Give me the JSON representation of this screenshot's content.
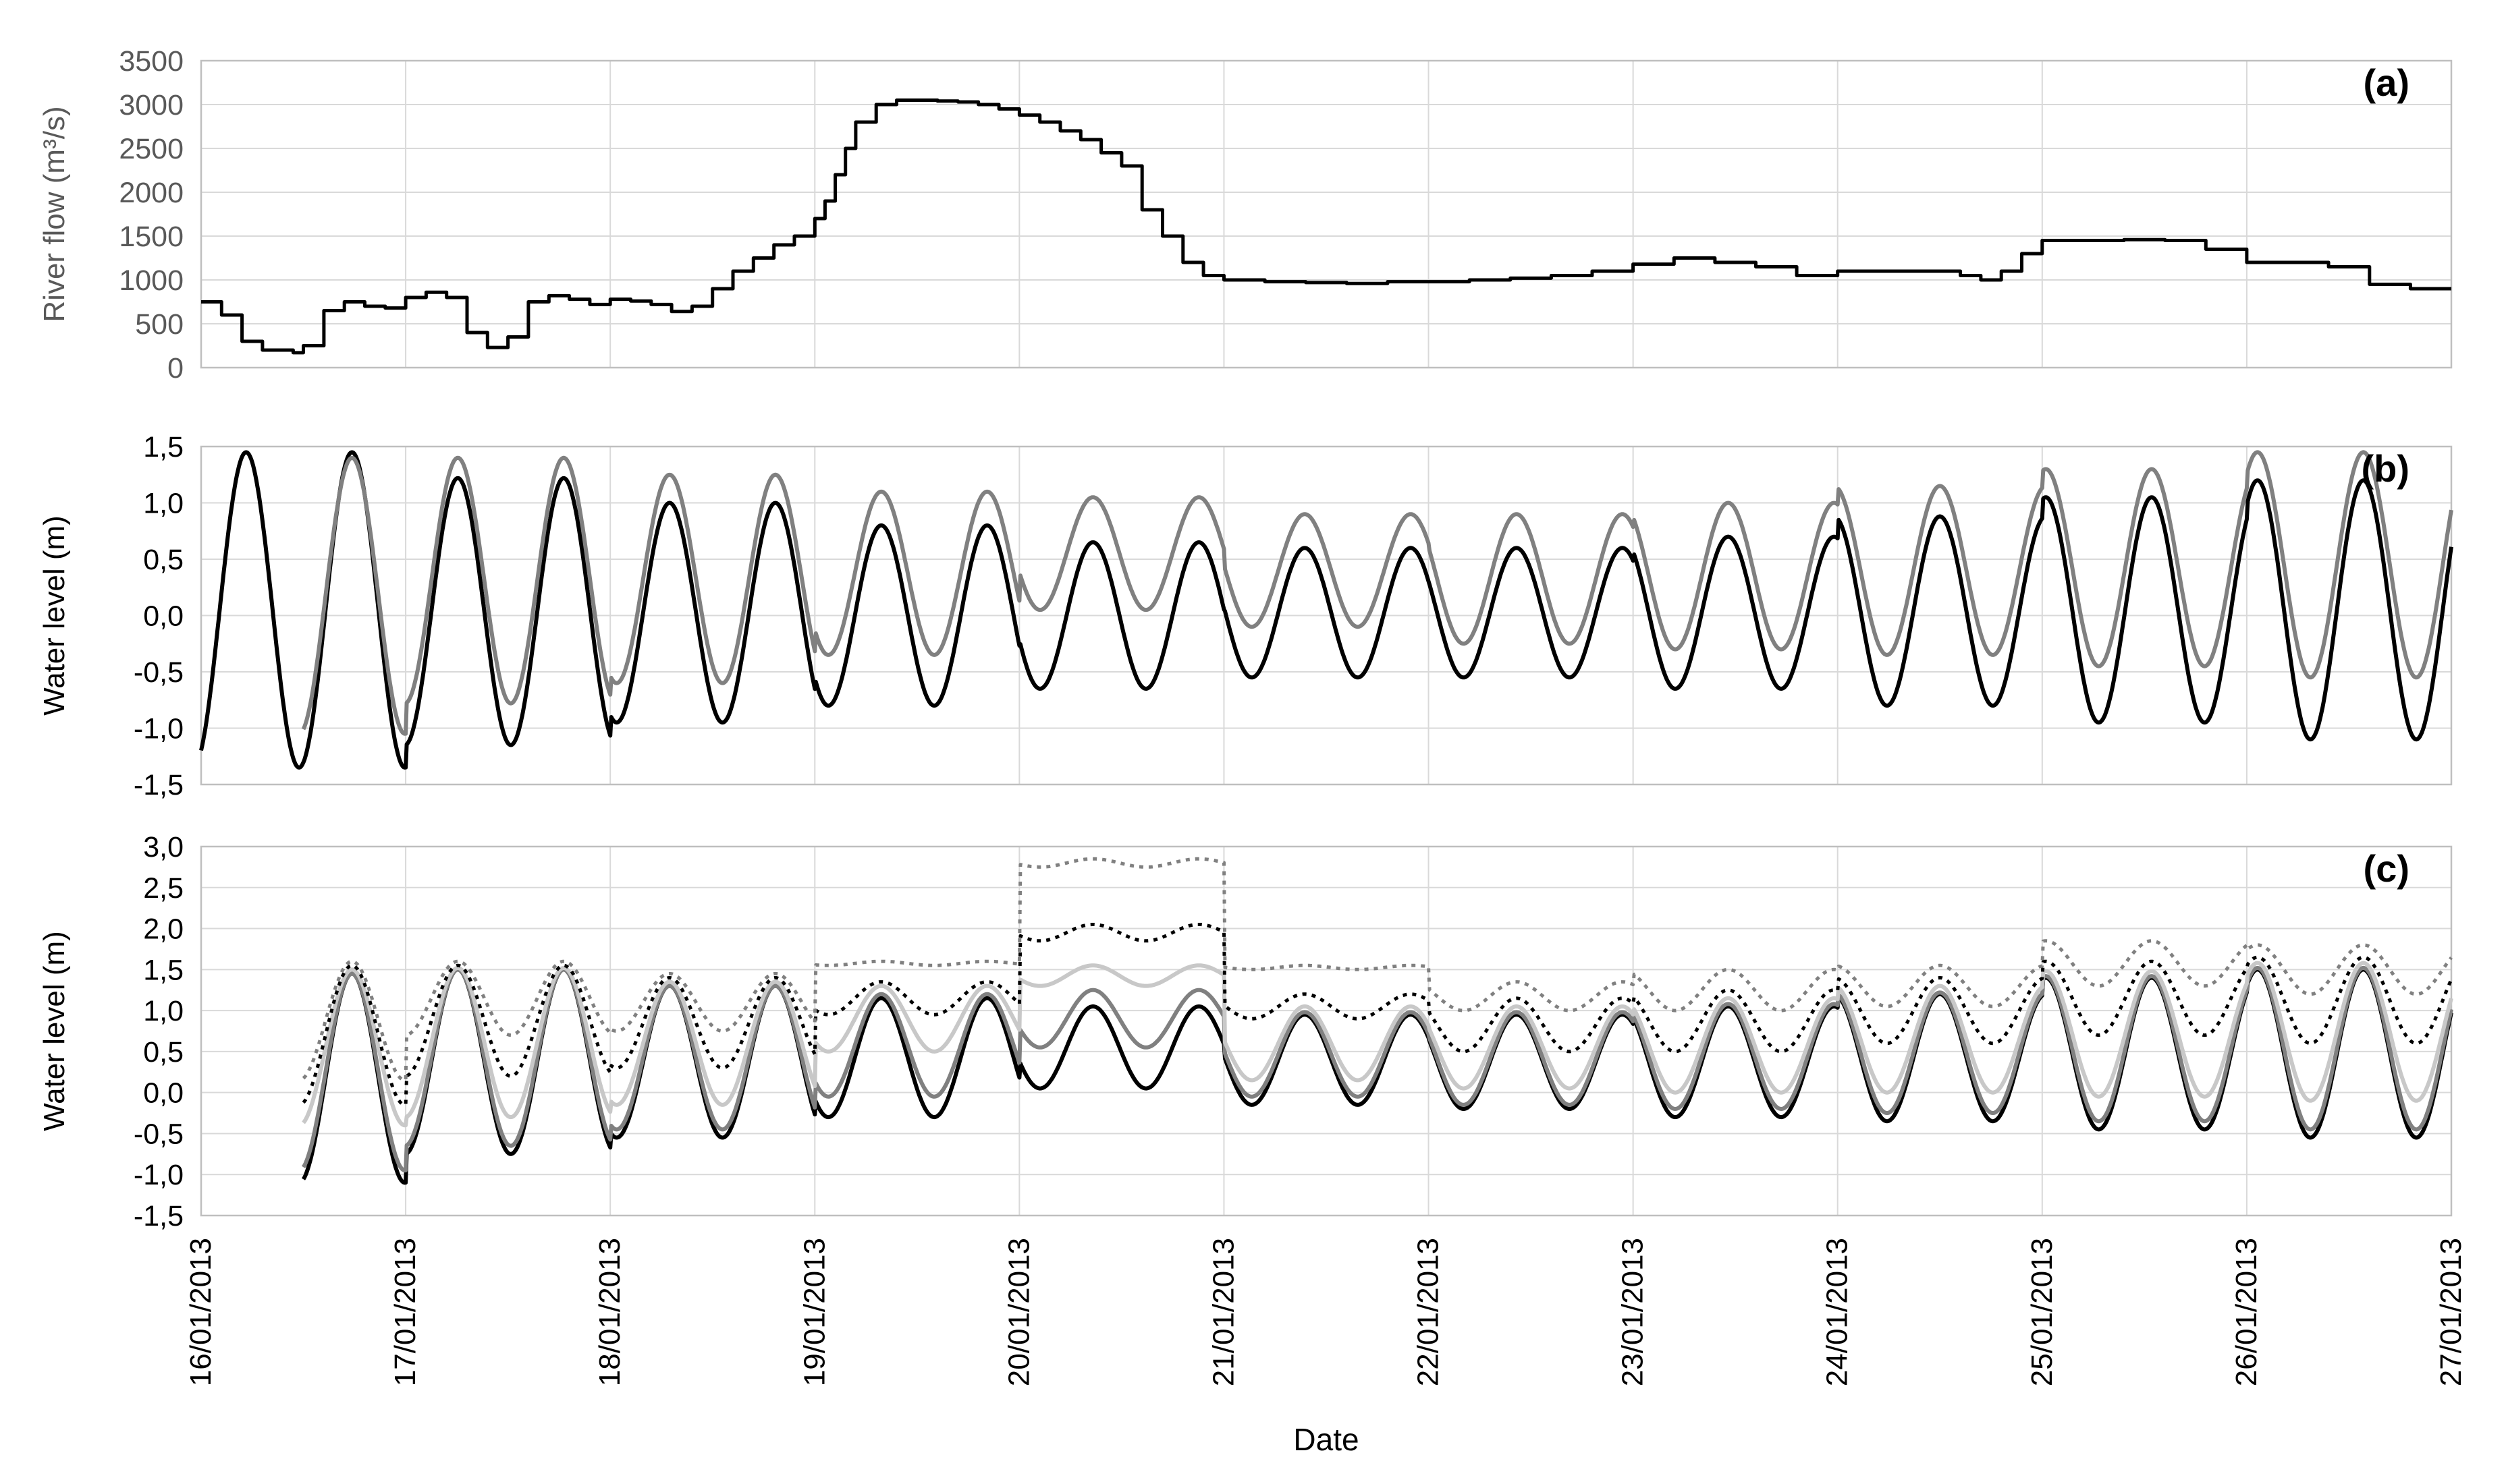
{
  "figure": {
    "xlabel": "Date",
    "x_ticks": [
      "16/01/2013",
      "17/01/2013",
      "18/01/2013",
      "19/01/2013",
      "20/01/2013",
      "21/01/2013",
      "22/01/2013",
      "23/01/2013",
      "24/01/2013",
      "25/01/2013",
      "26/01/2013",
      "27/01/2013"
    ]
  },
  "chart_data": [
    {
      "type": "line",
      "panel": "(a)",
      "ylabel": "River flow (m³/s)",
      "ylim": [
        0,
        3500
      ],
      "yticks": [
        "0",
        "500",
        "1000",
        "1500",
        "2000",
        "2500",
        "3000",
        "3500"
      ],
      "xlim_days": [
        16,
        27
      ],
      "grid": true,
      "legend": "none",
      "series": [
        {
          "color": "#000000",
          "step": true,
          "x": [
            16.0,
            16.1,
            16.2,
            16.3,
            16.45,
            16.5,
            16.6,
            16.7,
            16.8,
            16.9,
            17.0,
            17.1,
            17.2,
            17.3,
            17.4,
            17.5,
            17.6,
            17.7,
            17.8,
            17.9,
            18.0,
            18.1,
            18.2,
            18.3,
            18.4,
            18.5,
            18.6,
            18.7,
            18.8,
            18.9,
            19.0,
            19.05,
            19.1,
            19.15,
            19.2,
            19.3,
            19.4,
            19.5,
            19.6,
            19.7,
            19.8,
            19.9,
            20.0,
            20.1,
            20.2,
            20.3,
            20.4,
            20.5,
            20.6,
            20.7,
            20.8,
            20.9,
            21.0,
            21.2,
            21.4,
            21.6,
            21.8,
            22.0,
            22.2,
            22.4,
            22.6,
            22.8,
            23.0,
            23.2,
            23.4,
            23.6,
            23.8,
            24.0,
            24.2,
            24.4,
            24.6,
            24.7,
            24.8,
            24.9,
            25.0,
            25.2,
            25.4,
            25.6,
            25.8,
            26.0,
            26.2,
            26.4,
            26.6,
            26.8,
            27.0
          ],
          "y": [
            750,
            600,
            300,
            200,
            170,
            250,
            650,
            750,
            700,
            680,
            800,
            860,
            800,
            400,
            230,
            350,
            750,
            820,
            780,
            720,
            780,
            760,
            720,
            640,
            700,
            900,
            1100,
            1250,
            1400,
            1500,
            1700,
            1900,
            2200,
            2500,
            2800,
            3000,
            3050,
            3050,
            3040,
            3030,
            3000,
            2950,
            2880,
            2800,
            2700,
            2600,
            2450,
            2300,
            1800,
            1500,
            1200,
            1050,
            1000,
            980,
            970,
            960,
            980,
            980,
            1000,
            1020,
            1050,
            1100,
            1180,
            1250,
            1200,
            1150,
            1050,
            1100,
            1100,
            1100,
            1050,
            1000,
            1100,
            1300,
            1450,
            1450,
            1460,
            1450,
            1350,
            1200,
            1200,
            1150,
            950,
            900,
            900
          ]
        }
      ]
    },
    {
      "type": "line",
      "panel": "(b)",
      "ylabel": "Water level (m)",
      "ylim": [
        -1.5,
        1.5
      ],
      "yticks": [
        "-1,5",
        "-1,0",
        "-0,5",
        "0,0",
        "0,5",
        "1,0",
        "1,5"
      ],
      "xlim_days": [
        16,
        27
      ],
      "grid": true,
      "legend": "none",
      "series": [
        {
          "color": "#000000",
          "x_start": 16.0,
          "x_end": 27.0,
          "period_days": 0.5175,
          "first_peak_day": 16.22,
          "maxima_by_day": [
            1.45,
            1.22,
            1.0,
            0.8,
            0.65,
            0.6,
            0.6,
            0.7,
            0.88,
            1.05,
            1.2,
            1.05
          ],
          "minima_by_day": [
            -1.35,
            -1.15,
            -0.95,
            -0.8,
            -0.65,
            -0.55,
            -0.55,
            -0.65,
            -0.8,
            -0.95,
            -1.1,
            -1.18
          ]
        },
        {
          "color": "#808080",
          "x_start": 16.5,
          "x_end": 27.0,
          "period_days": 0.5175,
          "first_peak_day": 16.22,
          "maxima_by_day": [
            1.4,
            1.4,
            1.25,
            1.1,
            1.05,
            0.9,
            0.9,
            1.0,
            1.15,
            1.3,
            1.45,
            1.33
          ],
          "minima_by_day": [
            -1.05,
            -0.78,
            -0.6,
            -0.35,
            0.05,
            -0.1,
            -0.25,
            -0.3,
            -0.35,
            -0.45,
            -0.55,
            -0.7
          ]
        }
      ]
    },
    {
      "type": "line",
      "panel": "(c)",
      "ylabel": "Water level (m)",
      "ylim": [
        -1.5,
        3.0
      ],
      "yticks": [
        "-1,5",
        "-1,0",
        "-0,5",
        "0,0",
        "0,5",
        "1,0",
        "1,5",
        "2,0",
        "2,5",
        "3,0"
      ],
      "xlim_days": [
        16,
        27
      ],
      "grid": true,
      "legend": "none",
      "series": [
        {
          "color": "#000000",
          "dash": "solid",
          "x_start": 16.5,
          "x_end": 27.0,
          "period_days": 0.5175,
          "first_peak_day": 16.22,
          "maxima_by_day": [
            1.45,
            1.5,
            1.3,
            1.15,
            1.05,
            0.95,
            0.95,
            1.05,
            1.2,
            1.4,
            1.5,
            1.35
          ],
          "minima_by_day": [
            -1.1,
            -0.75,
            -0.55,
            -0.3,
            0.05,
            -0.15,
            -0.2,
            -0.3,
            -0.35,
            -0.45,
            -0.55,
            -0.7
          ]
        },
        {
          "color": "#808080",
          "dash": "solid",
          "x_start": 16.5,
          "x_end": 27.0,
          "period_days": 0.5175,
          "first_peak_day": 16.22,
          "maxima_by_day": [
            1.45,
            1.5,
            1.3,
            1.2,
            1.25,
            0.98,
            0.98,
            1.08,
            1.22,
            1.42,
            1.52,
            1.37
          ],
          "minima_by_day": [
            -0.95,
            -0.65,
            -0.45,
            -0.05,
            0.55,
            -0.05,
            -0.15,
            -0.2,
            -0.25,
            -0.35,
            -0.45,
            -0.55
          ]
        },
        {
          "color": "#c8c8c8",
          "dash": "solid",
          "x_start": 16.5,
          "x_end": 27.0,
          "period_days": 0.5175,
          "first_peak_day": 16.22,
          "maxima_by_day": [
            1.5,
            1.52,
            1.35,
            1.3,
            1.55,
            1.05,
            1.05,
            1.15,
            1.3,
            1.48,
            1.58,
            1.42
          ],
          "minima_by_day": [
            -0.4,
            -0.3,
            -0.15,
            0.5,
            1.3,
            0.15,
            0.05,
            0.0,
            0.0,
            -0.05,
            -0.1,
            -0.05
          ]
        },
        {
          "color": "#000000",
          "dash": "dotted",
          "x_start": 16.5,
          "x_end": 27.0,
          "period_days": 0.5175,
          "first_peak_day": 16.22,
          "maxima_by_day": [
            1.55,
            1.55,
            1.4,
            1.35,
            2.05,
            1.2,
            1.15,
            1.25,
            1.4,
            1.6,
            1.65,
            1.5
          ],
          "minima_by_day": [
            -0.15,
            0.2,
            0.3,
            0.95,
            1.85,
            0.9,
            0.5,
            0.5,
            0.6,
            0.7,
            0.6,
            0.3
          ]
        },
        {
          "color": "#808080",
          "dash": "dotted",
          "x_start": 16.5,
          "x_end": 27.0,
          "period_days": 0.5175,
          "first_peak_day": 16.22,
          "maxima_by_day": [
            1.6,
            1.6,
            1.45,
            1.6,
            2.85,
            1.55,
            1.35,
            1.5,
            1.55,
            1.85,
            1.8,
            1.6
          ],
          "minima_by_day": [
            0.15,
            0.7,
            0.75,
            1.55,
            2.75,
            1.5,
            1.0,
            1.0,
            1.05,
            1.3,
            1.2,
            0.85
          ]
        }
      ]
    }
  ]
}
